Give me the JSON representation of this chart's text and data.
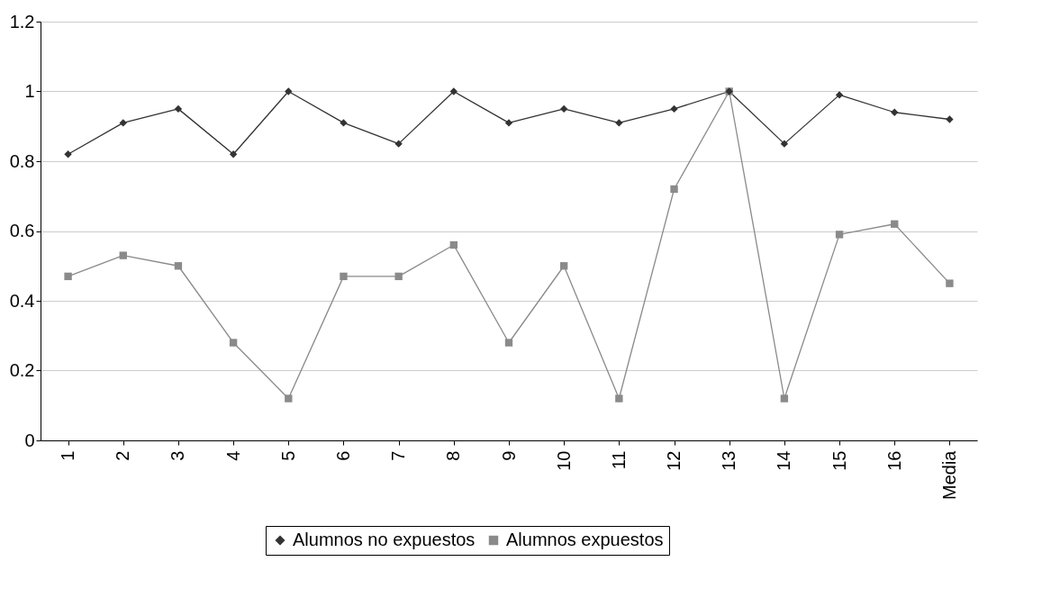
{
  "chart_data": {
    "type": "line",
    "categories": [
      "1",
      "2",
      "3",
      "4",
      "5",
      "6",
      "7",
      "8",
      "9",
      "10",
      "11",
      "12",
      "13",
      "14",
      "15",
      "16",
      "Media"
    ],
    "series": [
      {
        "name": "Alumnos no expuestos",
        "color": "#333333",
        "marker": "diamond",
        "values": [
          0.82,
          0.91,
          0.95,
          0.82,
          1.0,
          0.91,
          0.85,
          1.0,
          0.91,
          0.95,
          0.91,
          0.95,
          1.0,
          0.85,
          0.99,
          0.94,
          0.92
        ]
      },
      {
        "name": "Alumnos expuestos",
        "color": "#8a8a8a",
        "marker": "square",
        "values": [
          0.47,
          0.53,
          0.5,
          0.28,
          0.12,
          0.47,
          0.47,
          0.56,
          0.28,
          0.5,
          0.12,
          0.72,
          1.0,
          0.12,
          0.59,
          0.62,
          0.45
        ]
      }
    ],
    "ylim": [
      0,
      1.2
    ],
    "yticks": [
      0,
      0.2,
      0.4,
      0.6,
      0.8,
      1,
      1.2
    ],
    "grid": "y",
    "legend": "bottom",
    "line_style": "solid"
  }
}
